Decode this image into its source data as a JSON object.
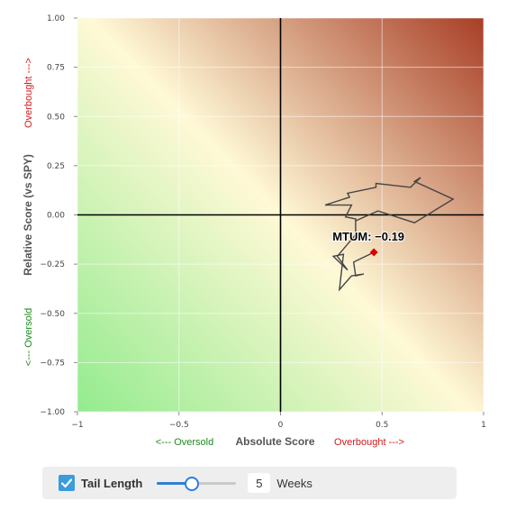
{
  "chart_data": {
    "type": "scatter",
    "xlabel": "Absolute Score",
    "ylabel": "Relative Score (vs SPY)",
    "xlim": [
      -1,
      1
    ],
    "ylim": [
      -1,
      1
    ],
    "x_ticks": [
      -1,
      -0.5,
      0,
      0.5,
      1
    ],
    "x_tick_labels": [
      "−1",
      "−0.5",
      "0",
      "0.5",
      "1"
    ],
    "y_ticks": [
      1,
      0.75,
      0.5,
      0.25,
      0,
      -0.25,
      -0.5,
      -0.75,
      -1
    ],
    "y_tick_labels": [
      "1.00",
      "0.75",
      "0.50",
      "0.25",
      "0.00",
      "−0.25",
      "−0.50",
      "−0.75",
      "−1.00"
    ],
    "grid": true,
    "x_direction_labels": {
      "low": "<--- Oversold",
      "high": "Overbought --->"
    },
    "y_direction_labels": {
      "low": "<--- Oversold",
      "high": "Overbought --->"
    },
    "background": "diagonal gradient: green (oversold, bottom-left) to cream (neutral) to red-brown (overbought, top-right)",
    "series": [
      {
        "name": "MTUM",
        "trail": [
          [
            0.37,
            -0.03
          ],
          [
            0.48,
            0.02
          ],
          [
            0.66,
            -0.04
          ],
          [
            0.85,
            0.08
          ],
          [
            0.66,
            0.17
          ],
          [
            0.69,
            0.19
          ],
          [
            0.64,
            0.14
          ],
          [
            0.47,
            0.16
          ],
          [
            0.47,
            0.14
          ],
          [
            0.33,
            0.11
          ],
          [
            0.34,
            0.09
          ],
          [
            0.22,
            0.05
          ],
          [
            0.35,
            0.05
          ],
          [
            0.32,
            -0.01
          ],
          [
            0.37,
            -0.02
          ],
          [
            0.37,
            -0.1
          ],
          [
            0.28,
            -0.21
          ],
          [
            0.33,
            -0.28
          ],
          [
            0.26,
            -0.21
          ],
          [
            0.31,
            -0.2
          ],
          [
            0.29,
            -0.38
          ],
          [
            0.35,
            -0.31
          ],
          [
            0.41,
            -0.3
          ],
          [
            0.37,
            -0.31
          ],
          [
            0.36,
            -0.24
          ],
          [
            0.46,
            -0.19
          ]
        ],
        "current": {
          "x": 0.46,
          "y": -0.19,
          "label": "MTUM: −0.19"
        }
      }
    ]
  },
  "colors": {
    "green": "#93eb8e",
    "cream": "#fff9d6",
    "brown": "#a83e26",
    "trail": "#444444",
    "current_point": "#d40000",
    "axis_zero": "#000000",
    "grid": "#ffffff",
    "oversold_text": "#1d8a1d",
    "overbought_text": "#d11a1a",
    "accent": "#2f7fd4",
    "checkbox": "#3b9bdc"
  },
  "controls": {
    "tail_checked": true,
    "checkbox_icon": "checkmark-icon",
    "tail_label": "Tail Length",
    "slider_value": 5,
    "slider_min": 1,
    "slider_max": 14,
    "weeks_value": "5",
    "weeks_label": "Weeks"
  }
}
